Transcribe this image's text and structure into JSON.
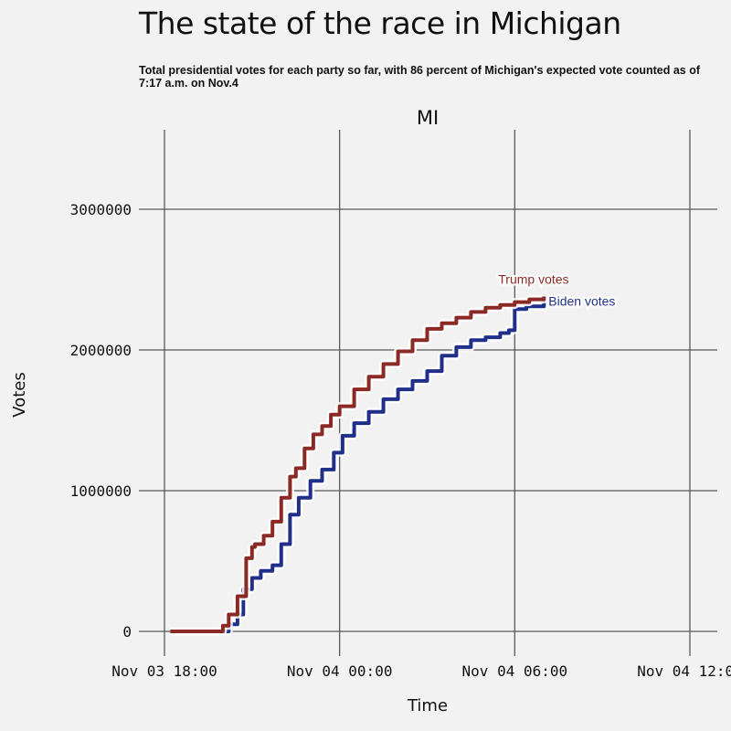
{
  "title": "The state of the race in Michigan",
  "subtitle": "Total presidential votes for each party so far, with 86 percent of Michigan's expected vote counted as of 7:17 a.m. on Nov.4",
  "chart_data": {
    "type": "line",
    "panel_title": "MI",
    "xlabel": "Time",
    "ylabel": "Votes",
    "x_unit": "hours since Nov 03 18:00",
    "xlim": [
      -0.2,
      18.2
    ],
    "ylim": [
      -150000,
      3500000
    ],
    "x_ticks": [
      {
        "value": 0,
        "label": "Nov 03 18:00"
      },
      {
        "value": 6,
        "label": "Nov 04 00:00"
      },
      {
        "value": 12,
        "label": "Nov 04 06:00"
      },
      {
        "value": 18,
        "label": "Nov 04 12:00"
      }
    ],
    "y_ticks": [
      {
        "value": 0,
        "label": "0"
      },
      {
        "value": 1000000,
        "label": "1000000"
      },
      {
        "value": 2000000,
        "label": "2000000"
      },
      {
        "value": 3000000,
        "label": "3000000"
      }
    ],
    "series": [
      {
        "name": "Trump votes",
        "color": "#8b2a24",
        "x": [
          0.2,
          1.9,
          2.0,
          2.2,
          2.5,
          2.8,
          3.0,
          3.1,
          3.4,
          3.7,
          4.0,
          4.3,
          4.5,
          4.8,
          5.1,
          5.4,
          5.7,
          6.0,
          6.5,
          7.0,
          7.5,
          8.0,
          8.5,
          9.0,
          9.5,
          10.0,
          10.5,
          11.0,
          11.5,
          12.0,
          12.5,
          13.0
        ],
        "values": [
          0,
          0,
          40000,
          120000,
          250000,
          520000,
          600000,
          620000,
          680000,
          780000,
          950000,
          1100000,
          1160000,
          1300000,
          1400000,
          1460000,
          1540000,
          1600000,
          1720000,
          1810000,
          1900000,
          1990000,
          2070000,
          2150000,
          2190000,
          2230000,
          2270000,
          2300000,
          2320000,
          2340000,
          2360000,
          2380000
        ]
      },
      {
        "name": "Biden votes",
        "color": "#1f2f8a",
        "x": [
          0.2,
          2.0,
          2.2,
          2.5,
          2.7,
          3.0,
          3.3,
          3.7,
          4.0,
          4.3,
          4.6,
          5.0,
          5.4,
          5.8,
          6.1,
          6.5,
          7.0,
          7.5,
          8.0,
          8.5,
          9.0,
          9.5,
          10.0,
          10.5,
          11.0,
          11.5,
          11.8,
          12.0,
          12.4,
          12.8,
          13.0
        ],
        "values": [
          0,
          0,
          50000,
          120000,
          300000,
          380000,
          430000,
          470000,
          620000,
          830000,
          950000,
          1070000,
          1150000,
          1270000,
          1390000,
          1480000,
          1560000,
          1650000,
          1720000,
          1780000,
          1850000,
          1960000,
          2020000,
          2070000,
          2090000,
          2120000,
          2140000,
          2290000,
          2310000,
          2310000,
          2360000
        ]
      }
    ]
  }
}
